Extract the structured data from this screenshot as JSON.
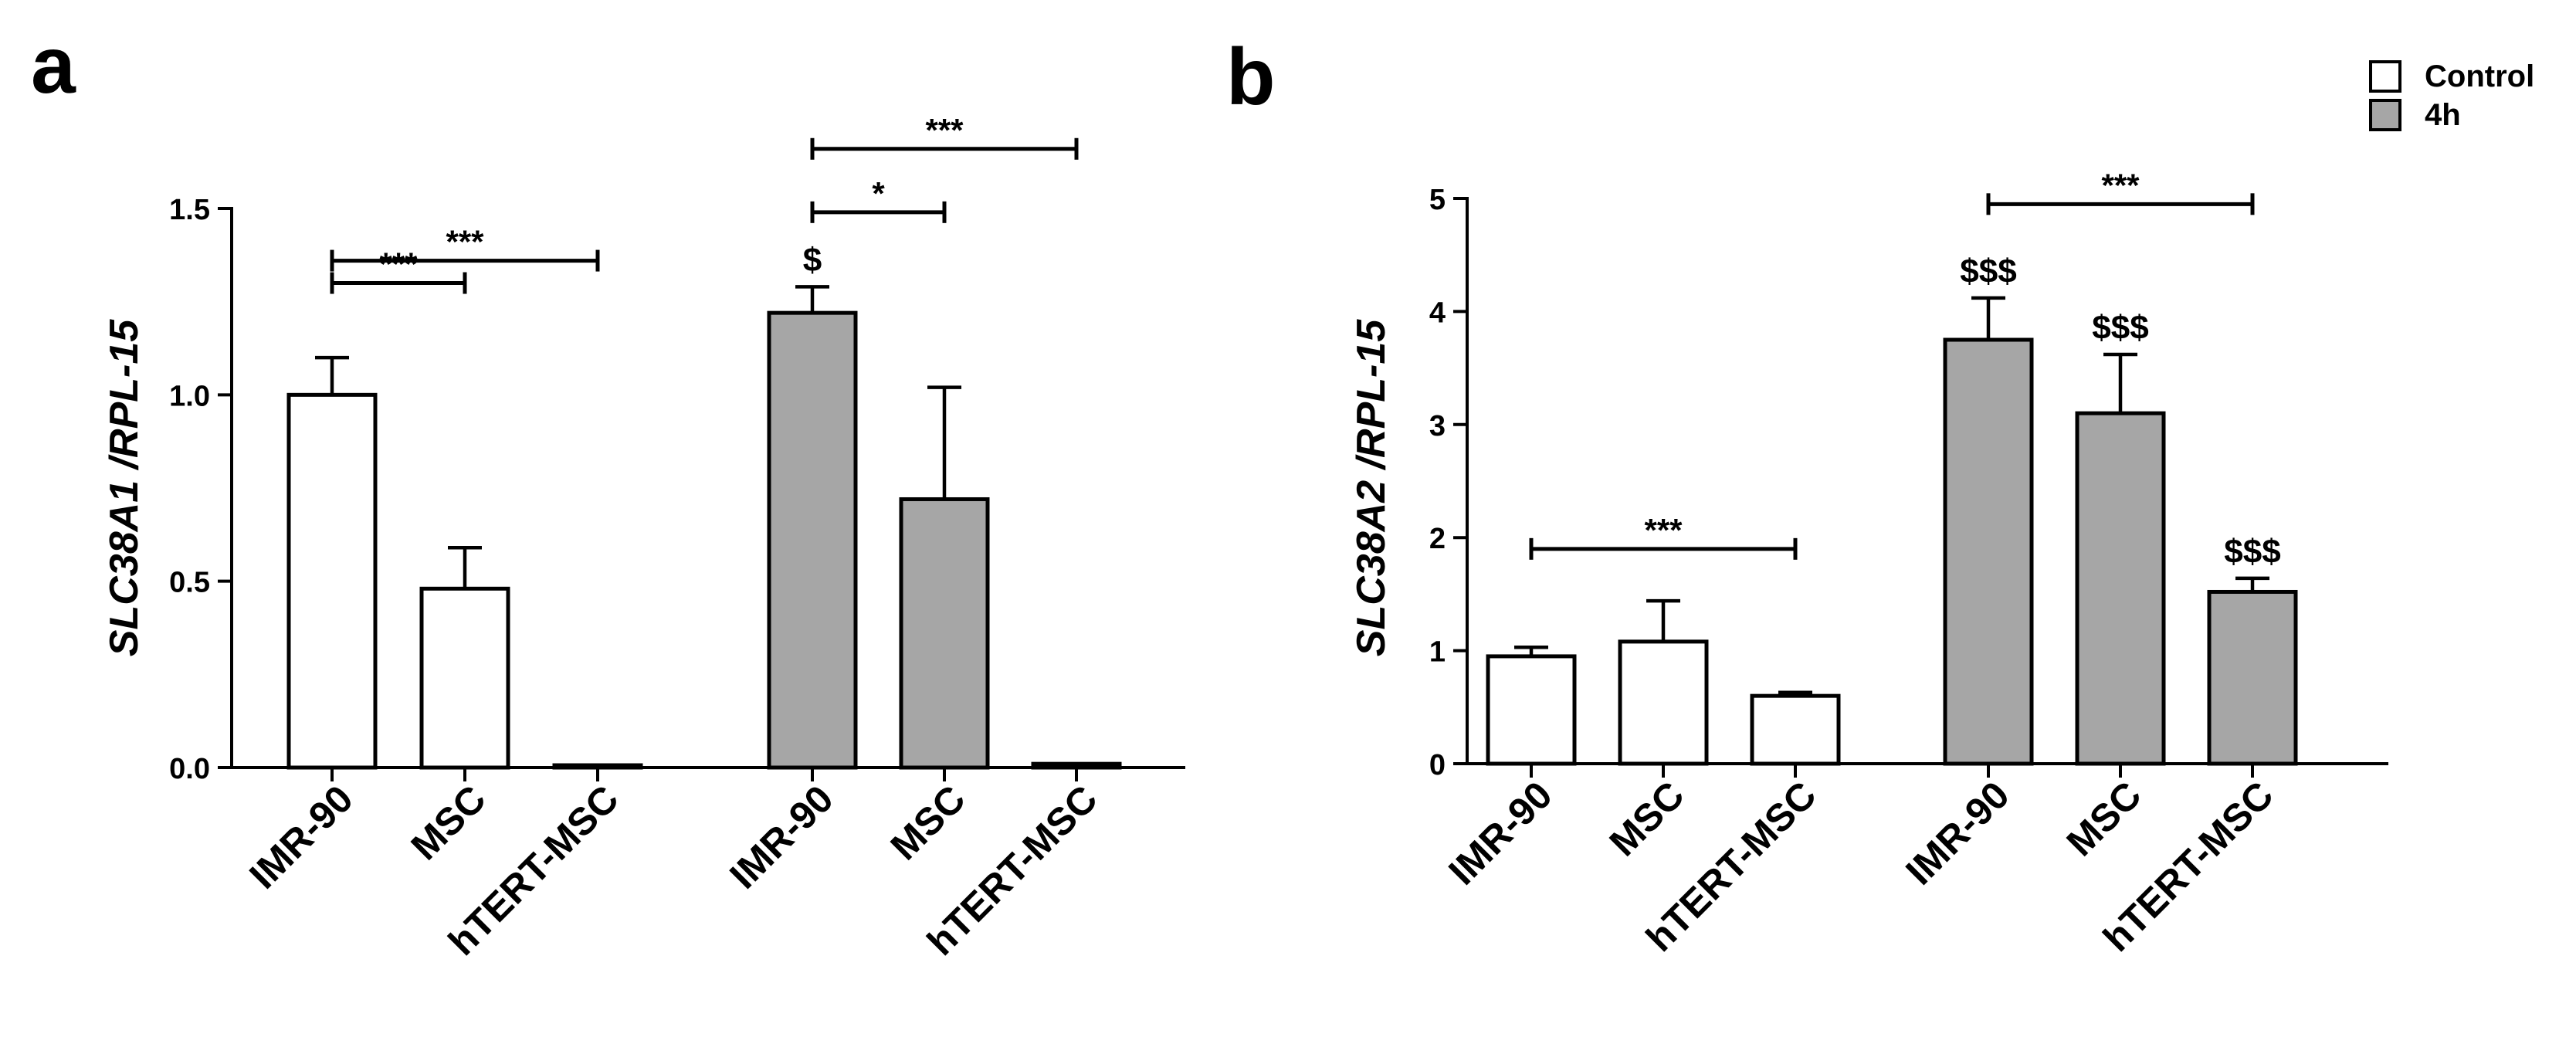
{
  "legend": {
    "items": [
      {
        "label": "Control",
        "color": "#ffffff"
      },
      {
        "label": "4h",
        "color": "#a6a6a6"
      }
    ]
  },
  "chart_data": [
    {
      "type": "bar",
      "panel_label": "a",
      "ylabel": "SLC38A1 /RPL-15",
      "ylim": [
        0,
        1.5
      ],
      "yticks": [
        0.0,
        0.5,
        1.0,
        1.5
      ],
      "ytick_labels": [
        "0.0",
        "0.5",
        "1.0",
        "1.5"
      ],
      "groups": [
        {
          "name": "Control",
          "color": "#ffffff",
          "categories": [
            "IMR-90",
            "MSC",
            "hTERT-MSC"
          ],
          "values": [
            1.0,
            0.48,
            0.005
          ],
          "errors": [
            0.1,
            0.11,
            0.0
          ],
          "marks": [
            "",
            "",
            ""
          ]
        },
        {
          "name": "4h",
          "color": "#a6a6a6",
          "categories": [
            "IMR-90",
            "MSC",
            "hTERT-MSC"
          ],
          "values": [
            1.22,
            0.72,
            0.01
          ],
          "errors": [
            0.07,
            0.3,
            0.0
          ],
          "marks": [
            "$",
            "",
            ""
          ]
        }
      ],
      "brackets": [
        {
          "group": 0,
          "from": 0,
          "to": 1,
          "label": "***",
          "level": 1.3
        },
        {
          "group": 0,
          "from": 0,
          "to": 2,
          "label": "***",
          "level": 1.36
        },
        {
          "group": 1,
          "from": 0,
          "to": 1,
          "label": "*",
          "level": 1.49
        },
        {
          "group": 1,
          "from": 0,
          "to": 2,
          "label": "***",
          "level": 1.66
        }
      ]
    },
    {
      "type": "bar",
      "panel_label": "b",
      "ylabel": "SLC38A2 /RPL-15",
      "ylim": [
        0,
        5
      ],
      "yticks": [
        0,
        1,
        2,
        3,
        4,
        5
      ],
      "ytick_labels": [
        "0",
        "1",
        "2",
        "3",
        "4",
        "5"
      ],
      "groups": [
        {
          "name": "Control",
          "color": "#ffffff",
          "categories": [
            "IMR-90",
            "MSC",
            "hTERT-MSC"
          ],
          "values": [
            0.95,
            1.08,
            0.6
          ],
          "errors": [
            0.08,
            0.36,
            0.03
          ],
          "marks": [
            "",
            "",
            ""
          ]
        },
        {
          "name": "4h",
          "color": "#a6a6a6",
          "categories": [
            "IMR-90",
            "MSC",
            "hTERT-MSC"
          ],
          "values": [
            3.75,
            3.1,
            1.52
          ],
          "errors": [
            0.37,
            0.52,
            0.12
          ],
          "marks": [
            "$$$",
            "$$$",
            "$$$"
          ]
        }
      ],
      "brackets": [
        {
          "group": 0,
          "from": 0,
          "to": 2,
          "label": "***",
          "level": 1.9
        },
        {
          "group": 1,
          "from": 0,
          "to": 2,
          "label": "***",
          "level": 4.95
        }
      ]
    }
  ]
}
